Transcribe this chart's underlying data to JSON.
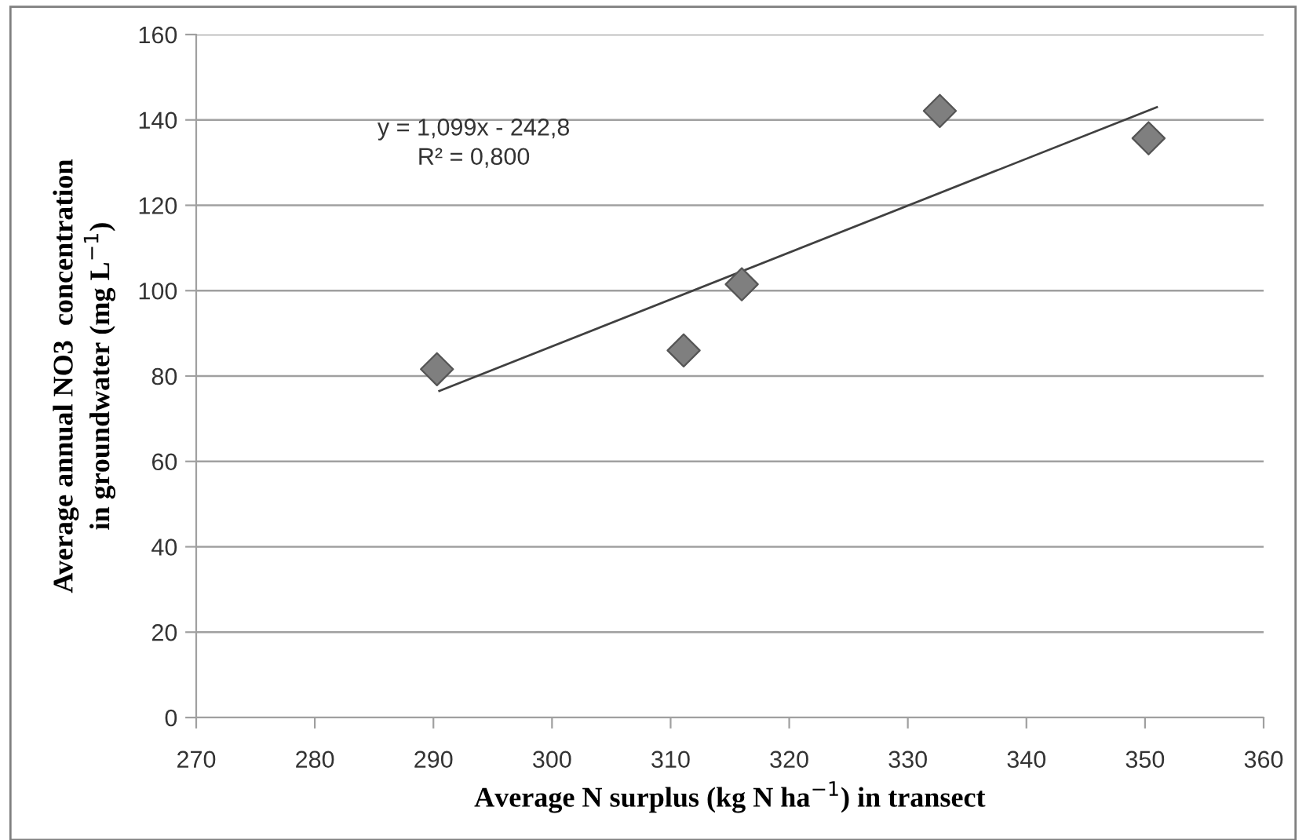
{
  "chart_data": {
    "type": "scatter",
    "xlabel": "Average N surplus (kg N ha$^{−1}$) in transect",
    "ylabel": "Average annual NO3  concentration\nin groundwater (mg L$^{−1}$)",
    "series": [
      {
        "x": [
          290.3,
          311.1,
          316.0,
          332.7,
          350.3
        ],
        "values": [
          81.6,
          86,
          101.5,
          142.1,
          135.7
        ],
        "color": "#7f7f7f",
        "marker": "diamond"
      },
      {
        "type": "line",
        "x": [
          290.5,
          351
        ],
        "values": [
          76.5,
          143.0
        ],
        "color": "#404040",
        "marker": "none"
      }
    ],
    "annotations": [
      "y = 1,099x - 242,8\nR² = 0,800"
    ],
    "xlim": [
      270,
      360
    ],
    "xticks": [
      270,
      280,
      290,
      300,
      310,
      320,
      330,
      340,
      350,
      360
    ],
    "ylim": [
      0,
      160
    ],
    "yticks": [
      0,
      20,
      40,
      60,
      80,
      100,
      120,
      140,
      160
    ],
    "grid": "y",
    "legend": false
  }
}
